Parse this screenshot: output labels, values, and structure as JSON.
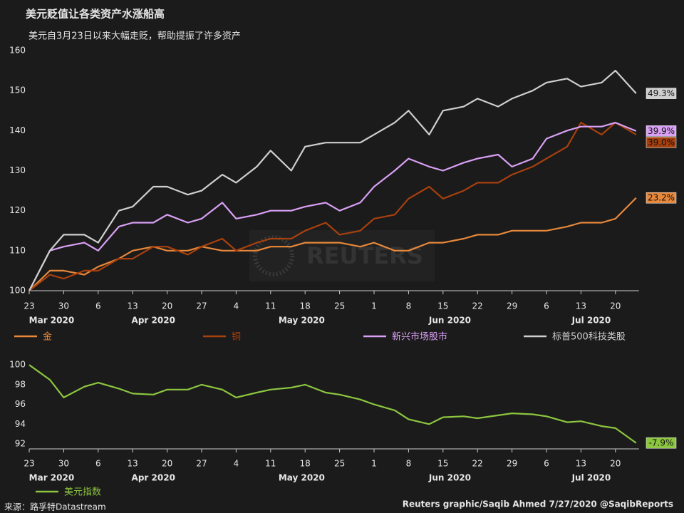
{
  "title": "美元贬值让各类资产水涨船高",
  "subtitle": "美元自3月23日以来大幅走贬，帮助提振了许多资产",
  "watermark": "REUTERS",
  "source": "来源：路孚特Datastream",
  "credit": "Reuters graphic/Saqib Ahmed 7/27/2020 @SaqibReports",
  "chart_data": [
    {
      "type": "line",
      "categories": [
        "23",
        null,
        "30",
        null,
        "6",
        null,
        "13",
        null,
        "20",
        null,
        "27",
        null,
        "4",
        null,
        "11",
        null,
        "18",
        null,
        "25",
        null,
        "1",
        null,
        "8",
        null,
        "15",
        null,
        "22",
        null,
        "29",
        null,
        "6",
        null,
        "13",
        null,
        "20",
        null
      ],
      "month_labels": [
        "Mar 2020",
        "Apr 2020",
        "May 2020",
        "Jun 2020",
        "Jul 2020"
      ],
      "ylim": [
        100,
        160
      ],
      "yticks": [
        100,
        110,
        120,
        130,
        140,
        150,
        160
      ],
      "series": [
        {
          "name": "金",
          "color": "#e8883a",
          "end_label": "23.2%",
          "values": [
            100,
            105,
            105,
            104,
            106,
            108,
            110,
            111,
            110,
            110,
            111,
            110,
            110,
            110,
            111,
            111,
            112,
            112,
            112,
            111,
            112,
            110,
            110,
            112,
            112,
            113,
            114,
            114,
            115,
            115,
            115,
            116,
            117,
            117,
            118,
            123.2
          ]
        },
        {
          "name": "铜",
          "color": "#a8400e",
          "end_label": "39.0%",
          "values": [
            100,
            104,
            103,
            105,
            105,
            108,
            108,
            111,
            111,
            109,
            111,
            113,
            110,
            112,
            113,
            113,
            115,
            117,
            114,
            115,
            118,
            119,
            123,
            126,
            123,
            125,
            127,
            127,
            129,
            131,
            133,
            136,
            142,
            139,
            142,
            139.0
          ]
        },
        {
          "name": "新兴市场股市",
          "color": "#d9a0f5",
          "end_label": "39.9%",
          "values": [
            100,
            110,
            111,
            112,
            110,
            116,
            117,
            117,
            119,
            117,
            118,
            122,
            118,
            119,
            120,
            120,
            121,
            122,
            120,
            122,
            126,
            130,
            133,
            131,
            130,
            132,
            133,
            134,
            131,
            133,
            138,
            140,
            141,
            141,
            142,
            139.9
          ]
        },
        {
          "name": "标普500科技类股",
          "color": "#cfcfcf",
          "end_label": "49.3%",
          "values": [
            100,
            110,
            114,
            114,
            112,
            120,
            121,
            126,
            126,
            124,
            125,
            129,
            127,
            131,
            135,
            130,
            136,
            137,
            137,
            137,
            139,
            142,
            145,
            139,
            145,
            146,
            148,
            146,
            148,
            150,
            152,
            153,
            151,
            152,
            155,
            149.3
          ]
        }
      ]
    },
    {
      "type": "line",
      "categories": [
        "23",
        null,
        "30",
        null,
        "6",
        null,
        "13",
        null,
        "20",
        null,
        "27",
        null,
        "4",
        null,
        "11",
        null,
        "18",
        null,
        "25",
        null,
        "1",
        null,
        "8",
        null,
        "15",
        null,
        "22",
        null,
        "29",
        null,
        "6",
        null,
        "13",
        null,
        "20",
        null
      ],
      "month_labels": [
        "Mar 2020",
        "Apr 2020",
        "May 2020",
        "Jun 2020",
        "Jul 2020"
      ],
      "ylim": [
        91.5,
        100.3
      ],
      "yticks": [
        92,
        94,
        96,
        98,
        100
      ],
      "series": [
        {
          "name": "美元指数",
          "color": "#8cc63f",
          "end_label": "-7.9%",
          "values": [
            100,
            98.5,
            96.7,
            97.8,
            98.2,
            97.6,
            97.1,
            97.0,
            97.5,
            97.5,
            98.0,
            97.5,
            96.7,
            97.2,
            97.5,
            97.7,
            98.0,
            97.2,
            97.0,
            96.5,
            96.0,
            95.4,
            94.5,
            94.0,
            94.7,
            94.8,
            94.6,
            94.9,
            95.1,
            95.0,
            94.8,
            94.2,
            94.3,
            93.8,
            93.6,
            92.1
          ]
        }
      ]
    }
  ]
}
